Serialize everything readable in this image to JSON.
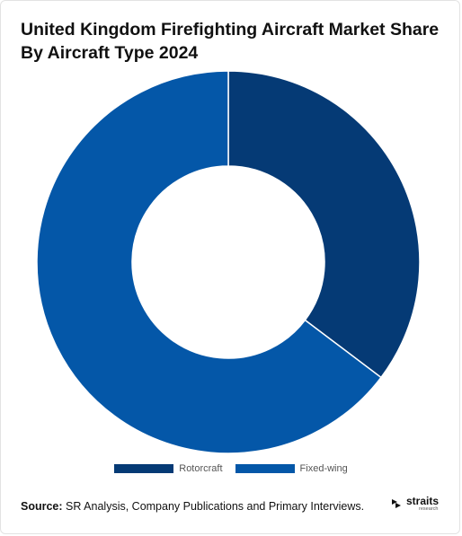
{
  "chart_data": {
    "type": "pie",
    "variant": "donut",
    "title": "United Kingdom Firefighting Aircraft Market Share By Aircraft Type 2024",
    "categories": [
      "Rotorcraft",
      "Fixed-wing"
    ],
    "values": [
      35.3,
      64.7
    ],
    "unit": "%",
    "colors": [
      "#053a75",
      "#0457a8"
    ],
    "legend_position": "bottom"
  },
  "footer": {
    "source_label": "Source:",
    "source_text": "SR Analysis, Company Publications and Primary Interviews.",
    "brand_name": "straits",
    "brand_sub": "research"
  }
}
